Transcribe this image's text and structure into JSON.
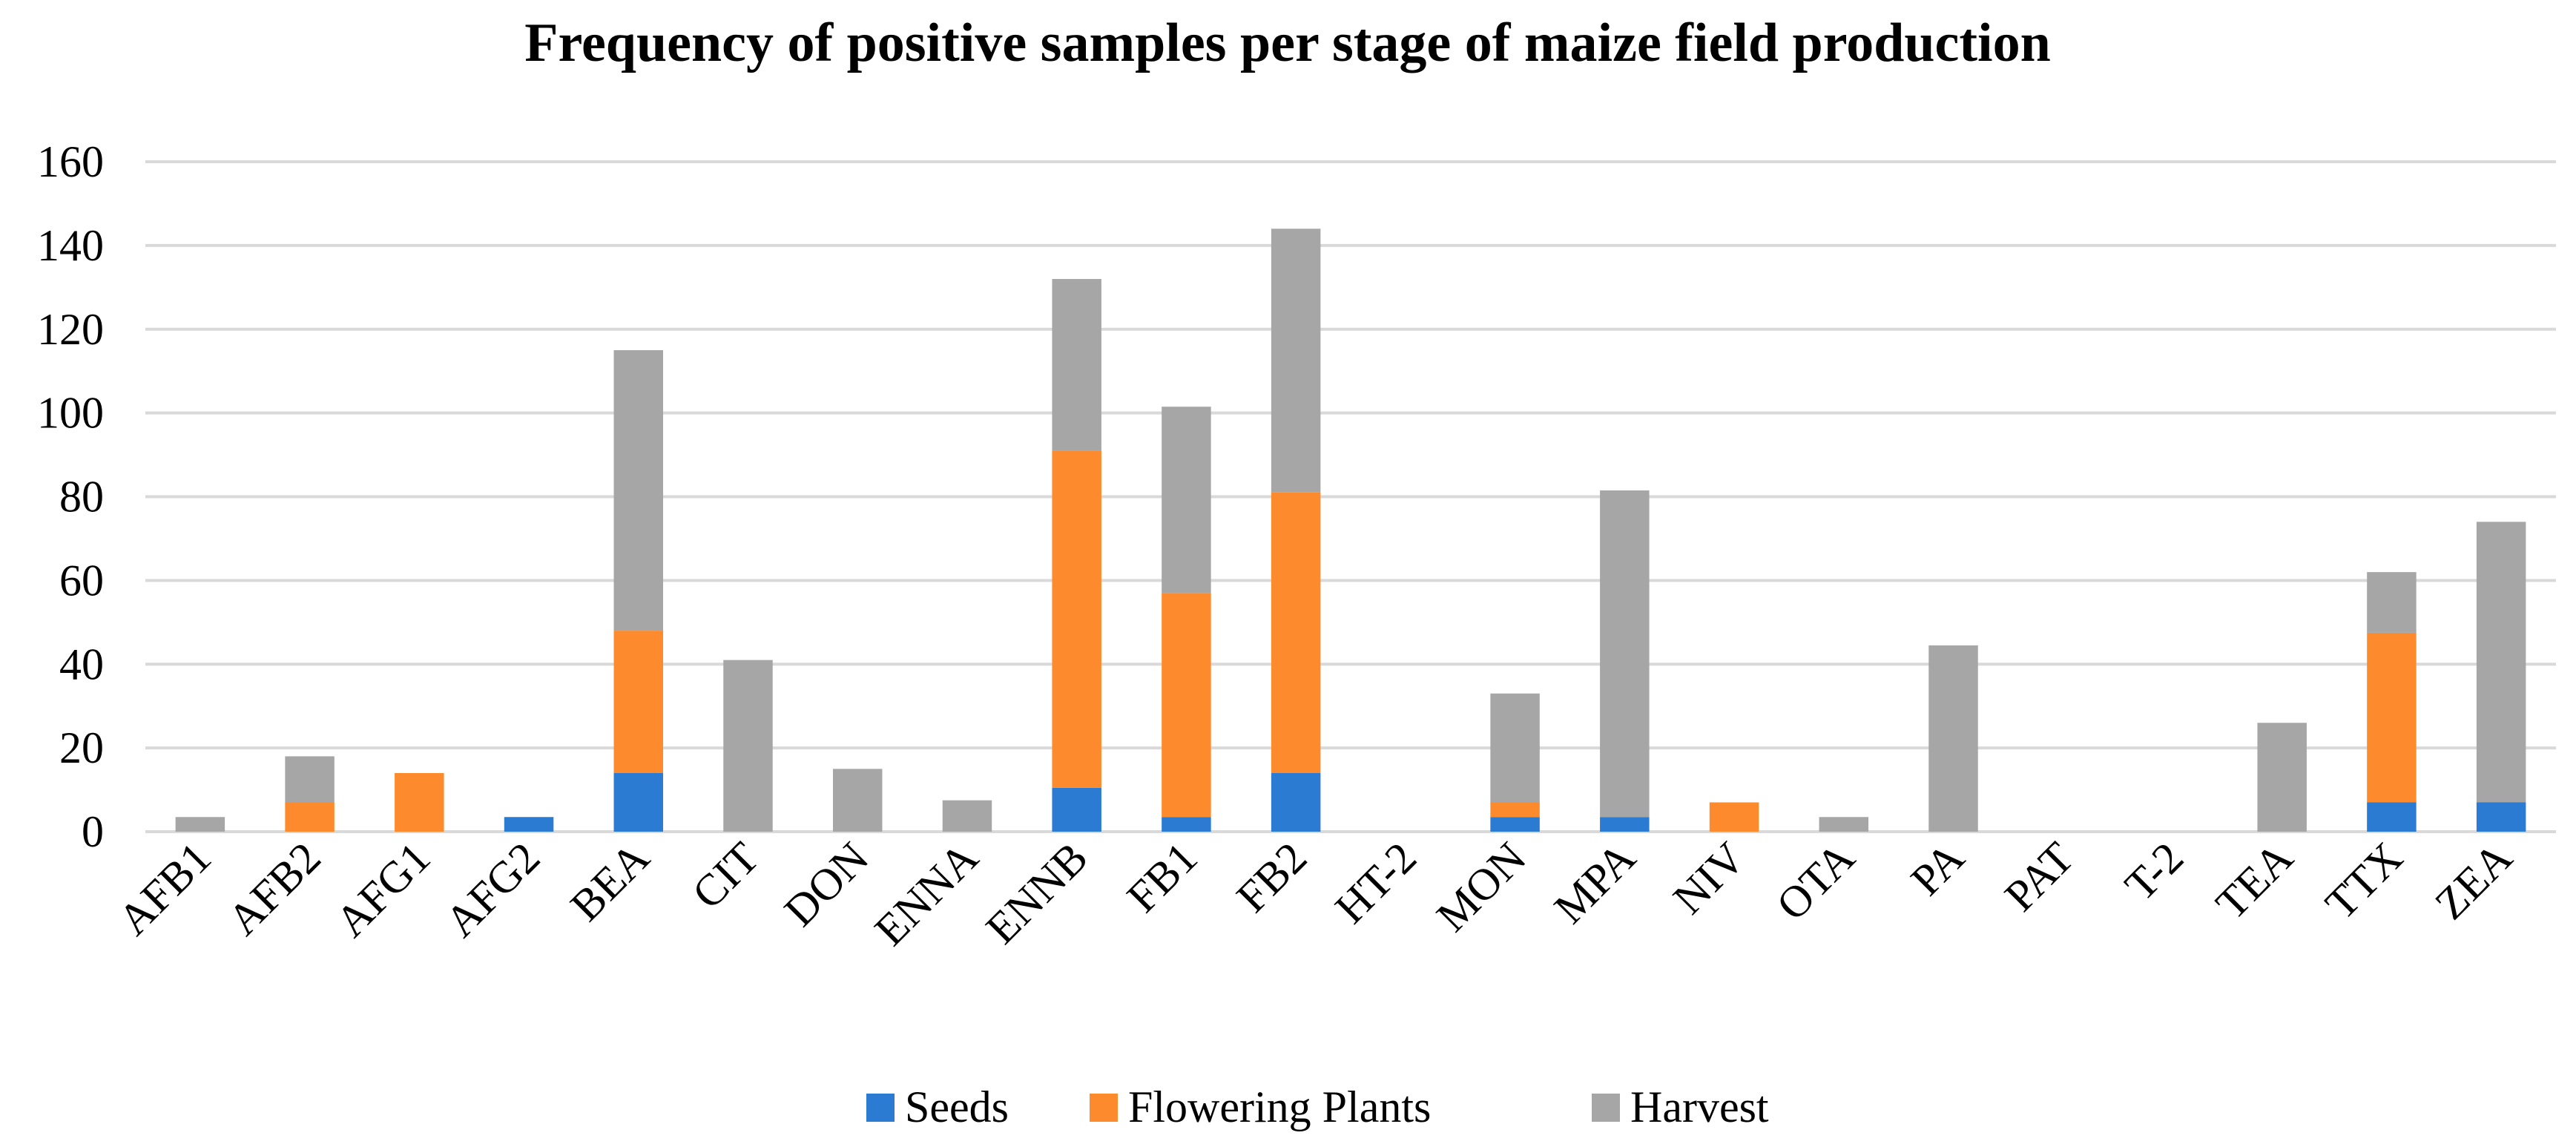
{
  "chart_data": {
    "type": "bar",
    "stacked": true,
    "title": "Frequency of positive samples per stage of maize field production",
    "xlabel": "",
    "ylabel": "",
    "ylim": [
      0,
      160
    ],
    "yticks": [
      0,
      20,
      40,
      60,
      80,
      100,
      120,
      140,
      160
    ],
    "grid": true,
    "legend_position": "bottom",
    "categories": [
      "AFB1",
      "AFB2",
      "AFG1",
      "AFG2",
      "BEA",
      "CIT",
      "DON",
      "ENNA",
      "ENNB",
      "FB1",
      "FB2",
      "HT-2",
      "MON",
      "MPA",
      "NIV",
      "OTA",
      "PA",
      "PAT",
      "T-2",
      "TEA",
      "TTX",
      "ZEA"
    ],
    "series": [
      {
        "name": "Seeds",
        "color": "#2a7bd1",
        "values": [
          0,
          0,
          0,
          3.5,
          14,
          0,
          0,
          0,
          10.5,
          3.5,
          14,
          0,
          3.5,
          3.5,
          0,
          0,
          0,
          0,
          0,
          0,
          7,
          7
        ]
      },
      {
        "name": "Flowering Plants",
        "color": "#fd8b2d",
        "values": [
          0,
          7,
          14,
          0,
          34,
          0,
          0,
          0,
          80.5,
          53.5,
          67,
          0,
          3.5,
          0,
          7,
          0,
          0,
          0,
          0,
          0,
          40.5,
          0
        ]
      },
      {
        "name": "Harvest",
        "color": "#a6a6a6",
        "values": [
          3.5,
          11,
          0,
          0,
          67,
          41,
          15,
          7.5,
          41,
          44.5,
          63,
          0,
          26,
          78,
          0,
          3.5,
          44.5,
          0,
          0,
          26,
          14.5,
          67
        ]
      }
    ]
  }
}
